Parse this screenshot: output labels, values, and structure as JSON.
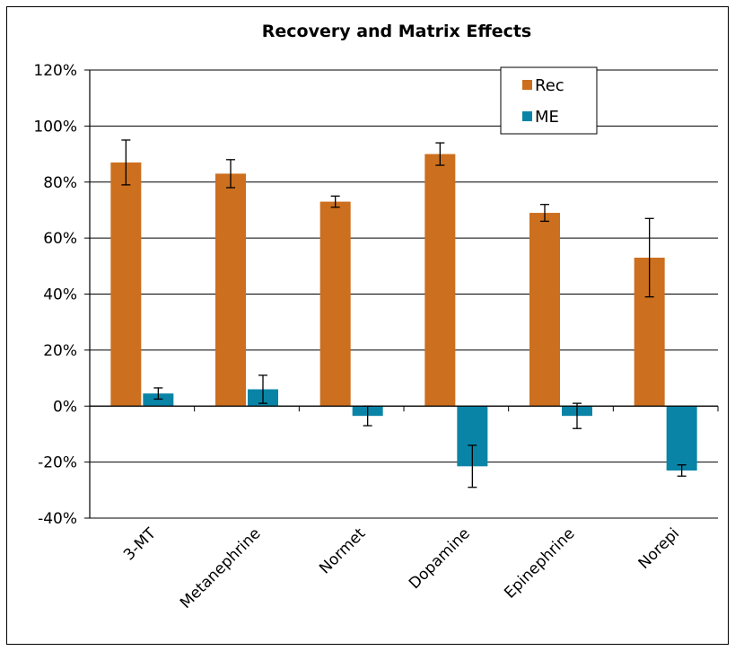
{
  "chart_data": {
    "type": "bar",
    "title": "Recovery and Matrix Effects",
    "xlabel": "",
    "ylabel": "",
    "categories": [
      "3-MT",
      "Metanephrine",
      "Normet",
      "Dopamine",
      "Epinephrine",
      "Norepi"
    ],
    "series": [
      {
        "name": "Rec",
        "color": "#CC6F1E",
        "values": [
          0.87,
          0.83,
          0.73,
          0.9,
          0.69,
          0.53
        ],
        "errors": [
          0.08,
          0.05,
          0.02,
          0.04,
          0.03,
          0.14
        ]
      },
      {
        "name": "ME",
        "color": "#0A84A6",
        "values": [
          0.045,
          0.06,
          -0.035,
          -0.215,
          -0.035,
          -0.23
        ],
        "errors": [
          0.02,
          0.05,
          0.035,
          0.075,
          0.045,
          0.02
        ]
      }
    ],
    "ylim": [
      -0.4,
      1.2
    ],
    "yticks": [
      "-40%",
      "-20%",
      "0%",
      "20%",
      "40%",
      "60%",
      "80%",
      "100%",
      "120%"
    ],
    "ytick_values": [
      -0.4,
      -0.2,
      0,
      0.2,
      0.4,
      0.6,
      0.8,
      1.0,
      1.2
    ],
    "grid": true,
    "legend_position": "top-right"
  }
}
